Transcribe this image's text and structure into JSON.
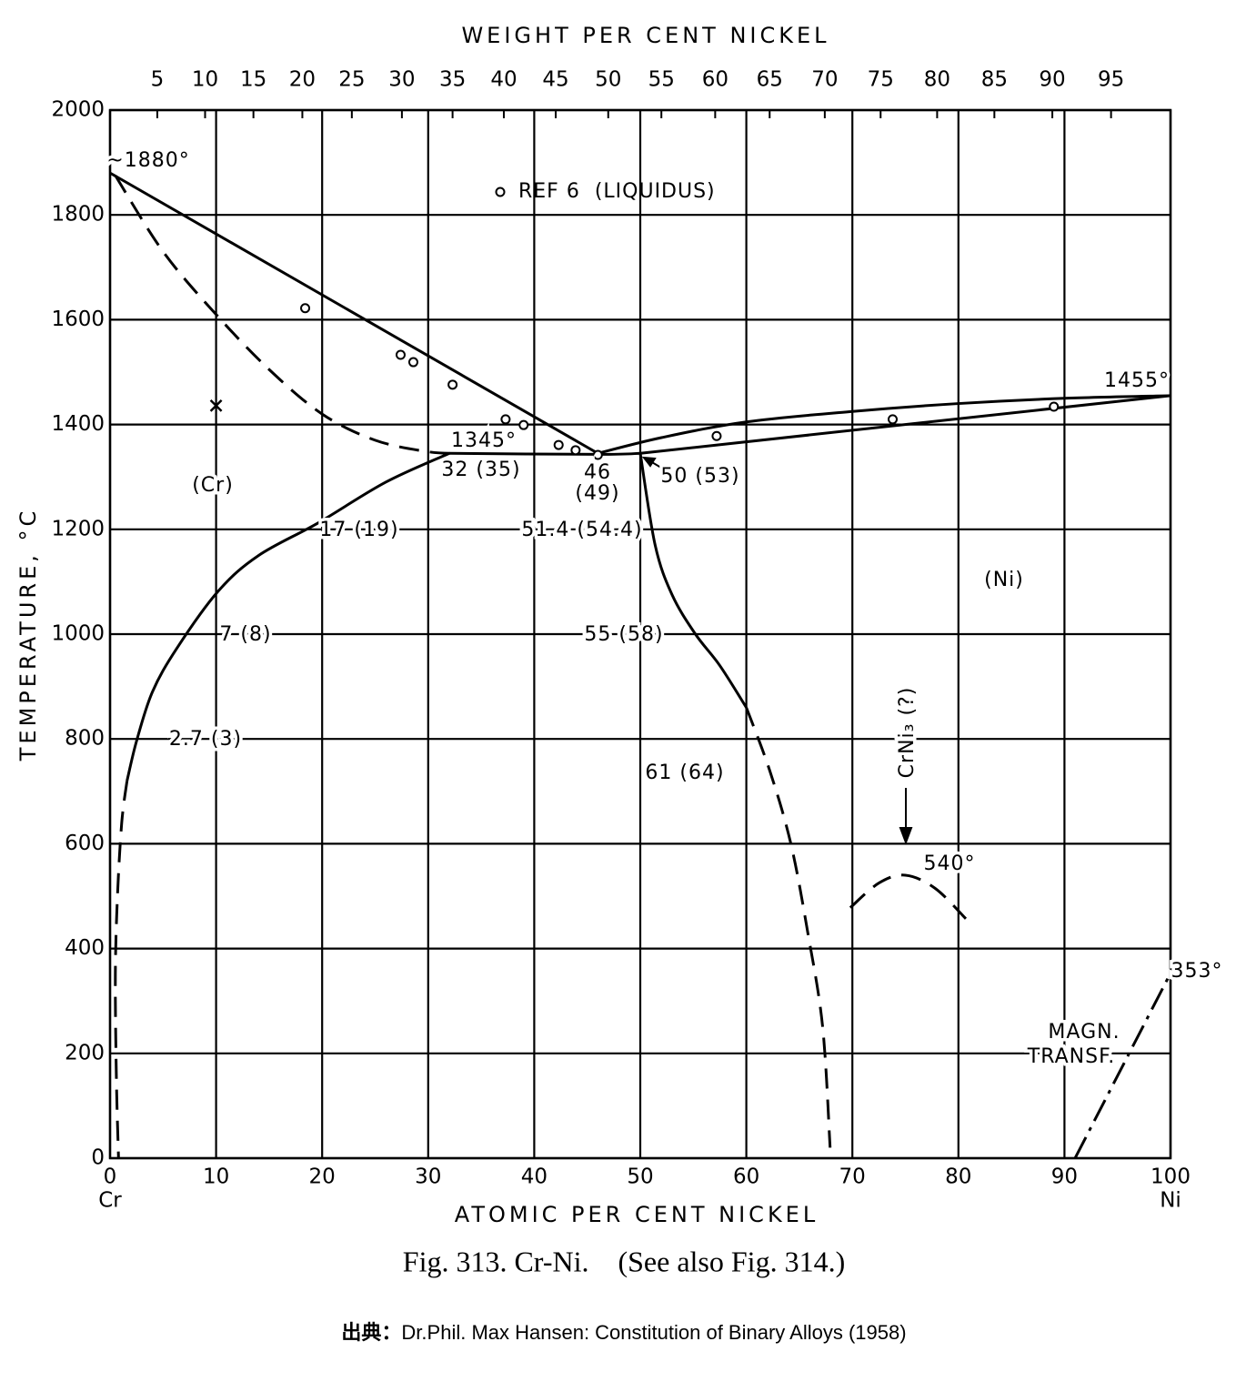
{
  "chart_data": {
    "type": "phase-diagram",
    "title": "Fig. 313. Cr-Ni.    (See also Fig. 314.)",
    "source_label": "出典：",
    "source": "Dr.Phil. Max Hansen: Constitution of Binary Alloys (1958)",
    "x_label": "ATOMIC PER CENT NICKEL",
    "x2_label": "WEIGHT PER CENT NICKEL",
    "y_label": "TEMPERATURE, °C",
    "x_end_labels": [
      "Cr",
      "Ni"
    ],
    "xlim": [
      0,
      100
    ],
    "xticks": [
      0,
      10,
      20,
      30,
      40,
      50,
      60,
      70,
      80,
      90,
      100
    ],
    "x2ticks": [
      5,
      10,
      15,
      20,
      25,
      30,
      35,
      40,
      45,
      50,
      55,
      60,
      65,
      70,
      75,
      80,
      85,
      90,
      95
    ],
    "ylim": [
      0,
      2000
    ],
    "yticks": [
      0,
      200,
      400,
      600,
      800,
      1000,
      1200,
      1400,
      1600,
      1800,
      2000
    ],
    "grid": true,
    "color": "#000000",
    "series": [
      {
        "style": "solid",
        "x": [
          0,
          46
        ],
        "values": [
          1880,
          1345
        ]
      },
      {
        "style": "dashed",
        "x": [
          0.5,
          5,
          10,
          15,
          20,
          25,
          30,
          33
        ],
        "values": [
          1875,
          1730,
          1610,
          1505,
          1420,
          1370,
          1348,
          1345
        ]
      },
      {
        "style": "solid",
        "x": [
          32,
          46,
          50
        ],
        "values": [
          1345,
          1343,
          1345
        ]
      },
      {
        "style": "solid",
        "x": [
          32,
          26,
          19.6,
          14,
          10.2,
          6.3,
          4,
          2.5,
          1.6
        ],
        "values": [
          1345,
          1290,
          1212,
          1150,
          1082,
          973,
          890,
          796,
          720
        ]
      },
      {
        "style": "dashed",
        "x": [
          1.6,
          1.1,
          0.7,
          0.5,
          0.6,
          0.8
        ],
        "values": [
          720,
          640,
          500,
          350,
          150,
          0
        ]
      },
      {
        "style": "solid",
        "x": [
          46,
          52,
          60,
          70,
          80,
          90,
          100
        ],
        "values": [
          1345,
          1375,
          1405,
          1425,
          1440,
          1450,
          1455
        ]
      },
      {
        "style": "solid",
        "x": [
          50,
          100
        ],
        "values": [
          1345,
          1455
        ]
      },
      {
        "style": "solid",
        "x": [
          50,
          51.4,
          53,
          55.2,
          57.5,
          60
        ],
        "values": [
          1345,
          1170,
          1075,
          1000,
          940,
          860
        ]
      },
      {
        "style": "dashed",
        "x": [
          60,
          62.2,
          64.2,
          65.8,
          67.2,
          67.9
        ],
        "values": [
          860,
          740,
          600,
          430,
          250,
          20
        ]
      },
      {
        "style": "dashed",
        "x": [
          69.8,
          72.5,
          75,
          77.8,
          80.7
        ],
        "values": [
          478,
          525,
          540,
          515,
          457
        ]
      },
      {
        "style": "dashdot",
        "x": [
          91,
          100
        ],
        "values": [
          0,
          353
        ]
      }
    ],
    "points": {
      "marker": "circle",
      "x": [
        18.4,
        27.4,
        28.6,
        32.3,
        37.3,
        39,
        42.3,
        43.9,
        46,
        57.2,
        73.8,
        89
      ],
      "values": [
        1622,
        1533,
        1519,
        1476,
        1410,
        1399,
        1361,
        1351,
        1342,
        1378,
        1410,
        1434
      ]
    },
    "cross": {
      "marker": "cross",
      "x": [
        10
      ],
      "values": [
        1436
      ]
    },
    "legend": "REF 6  (LIQUIDUS)",
    "annotations": [
      "~1880°",
      "1345°",
      "32 (35)",
      "46",
      "(49)",
      "50 (53)",
      "(Cr)",
      "17 (19)",
      "51.4 (54.4)",
      "(Ni)",
      "7 (8)",
      "55 (58)",
      "2.7 (3)",
      "61 (64)",
      "CrNi₃ (?)",
      "540°",
      "353°",
      "MAGN.",
      "TRANSF.",
      "1455°"
    ]
  }
}
